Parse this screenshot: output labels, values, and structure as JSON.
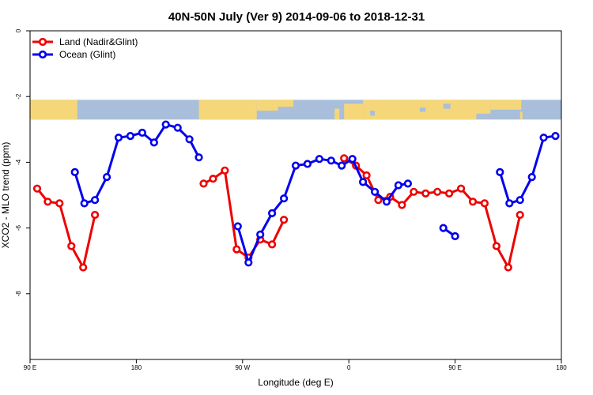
{
  "chart_data": {
    "type": "line",
    "title": "40N-50N July (Ver 9)   2014-09-06 to 2018-12-31",
    "xlabel": "Longitude (deg E)",
    "ylabel": "XCO2 - MLO trend (ppm)",
    "xlim": [
      90,
      540
    ],
    "ylim": [
      -10,
      0
    ],
    "x_ticks": [
      {
        "value": 90,
        "label": "90 E"
      },
      {
        "value": 180,
        "label": "180"
      },
      {
        "value": 270,
        "label": "90 W"
      },
      {
        "value": 360,
        "label": "0"
      },
      {
        "value": 450,
        "label": "90 E"
      },
      {
        "value": 540,
        "label": "180"
      }
    ],
    "y_ticks": [
      {
        "value": 0,
        "label": "0"
      },
      {
        "value": -2,
        "label": "-2"
      },
      {
        "value": -4,
        "label": "-4"
      },
      {
        "value": -6,
        "label": "-6"
      },
      {
        "value": -8,
        "label": "-8"
      }
    ],
    "grid": false,
    "legend_position": "top-left",
    "map_strip": {
      "y_top": -2.1,
      "y_bottom": -2.7,
      "ocean_color": "#a8bedb",
      "land_color": "#f5d77a"
    },
    "series": [
      {
        "name": "Land (Nadir&Glint)",
        "color": "#ee0000",
        "segments": [
          [
            [
              96,
              -4.8
            ],
            [
              105,
              -5.2
            ],
            [
              115,
              -5.25
            ],
            [
              125,
              -6.55
            ],
            [
              135,
              -7.2
            ],
            [
              145,
              -5.6
            ]
          ],
          [
            [
              237,
              -4.65
            ],
            [
              245,
              -4.5
            ],
            [
              255,
              -4.25
            ],
            [
              265,
              -6.65
            ],
            [
              275,
              -6.9
            ],
            [
              285,
              -6.35
            ],
            [
              295,
              -6.5
            ],
            [
              305,
              -5.75
            ]
          ],
          [
            [
              356,
              -3.88
            ],
            [
              366,
              -4.1
            ],
            [
              375,
              -4.4
            ],
            [
              385,
              -5.15
            ],
            [
              395,
              -5.05
            ],
            [
              405,
              -5.3
            ],
            [
              415,
              -4.9
            ],
            [
              425,
              -4.95
            ],
            [
              435,
              -4.9
            ],
            [
              445,
              -4.95
            ],
            [
              455,
              -4.8
            ],
            [
              465,
              -5.2
            ],
            [
              475,
              -5.25
            ],
            [
              485,
              -6.55
            ],
            [
              495,
              -7.2
            ],
            [
              505,
              -5.6
            ]
          ]
        ]
      },
      {
        "name": "Ocean (Glint)",
        "color": "#0000ee",
        "segments": [
          [
            [
              128,
              -4.3
            ],
            [
              136,
              -5.25
            ],
            [
              145,
              -5.15
            ],
            [
              155,
              -4.45
            ],
            [
              165,
              -3.25
            ],
            [
              175,
              -3.2
            ],
            [
              185,
              -3.1
            ],
            [
              195,
              -3.4
            ],
            [
              205,
              -2.85
            ],
            [
              215,
              -2.95
            ],
            [
              225,
              -3.3
            ],
            [
              233,
              -3.85
            ]
          ],
          [
            [
              266,
              -5.95
            ],
            [
              275,
              -7.05
            ],
            [
              285,
              -6.2
            ],
            [
              295,
              -5.55
            ],
            [
              305,
              -5.1
            ],
            [
              315,
              -4.1
            ],
            [
              325,
              -4.05
            ],
            [
              335,
              -3.9
            ],
            [
              345,
              -3.95
            ],
            [
              354,
              -4.1
            ],
            [
              363,
              -3.9
            ],
            [
              372,
              -4.6
            ],
            [
              382,
              -4.9
            ],
            [
              392,
              -5.2
            ],
            [
              402,
              -4.7
            ],
            [
              410,
              -4.65
            ]
          ],
          [
            [
              440,
              -6.0
            ],
            [
              450,
              -6.25
            ]
          ],
          [
            [
              488,
              -4.3
            ],
            [
              496,
              -5.25
            ],
            [
              505,
              -5.15
            ],
            [
              515,
              -4.45
            ],
            [
              525,
              -3.25
            ],
            [
              535,
              -3.2
            ]
          ]
        ]
      }
    ]
  }
}
